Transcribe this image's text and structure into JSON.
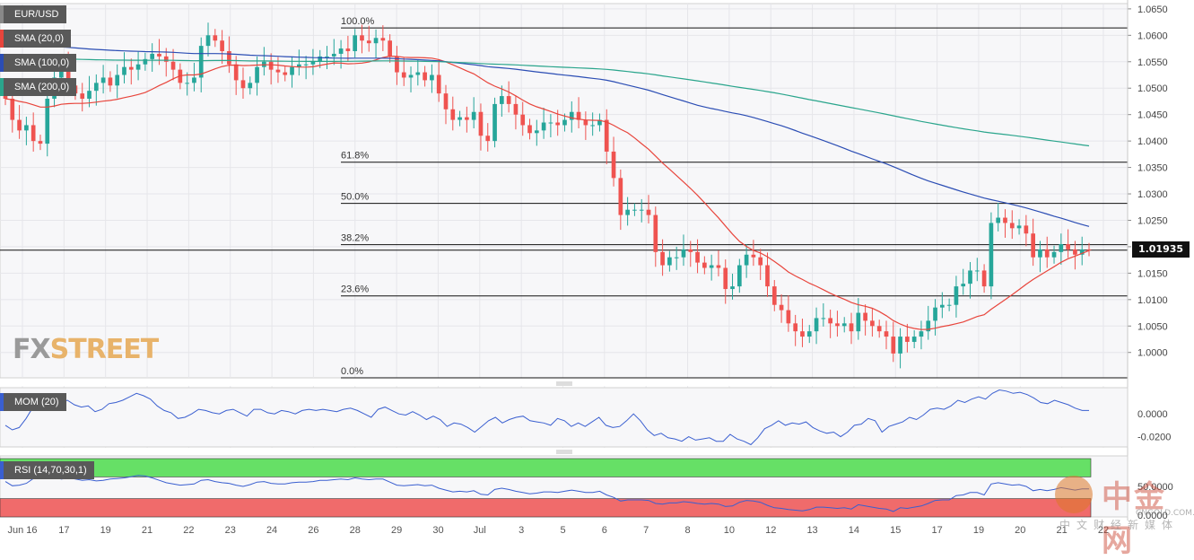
{
  "legend": {
    "symbol": "EUR/USD",
    "sma20": "SMA (20,0)",
    "sma100": "SMA (100,0)",
    "sma200": "SMA (200,0)",
    "mom": "MOM (20)",
    "rsi": "RSI (14,70,30,1)"
  },
  "colors": {
    "bull": "#26a69a",
    "bear": "#ef5350",
    "sma20": "#e8453c",
    "sma100": "#2b4db4",
    "sma200": "#2aa58c",
    "mom": "#3a5fd0",
    "rsi": "#3a5fd0",
    "overbought": "#66e066",
    "oversold": "#f06b6b"
  },
  "brand": {
    "logo_fx": "FX",
    "logo_street": "STREET",
    "wm_cn": "中金网",
    "wm_sub": "中文财经新媒体",
    "wm_url": "CNGOLD.COM.CN"
  },
  "last_price": "1.01935",
  "chart_data": {
    "type": "candlestick",
    "y_ticks": [
      "1.0650",
      "1.0600",
      "1.0550",
      "1.0500",
      "1.0450",
      "1.0400",
      "1.0350",
      "1.0300",
      "1.0250",
      "1.0200",
      "1.0150",
      "1.0100",
      "1.0050",
      "1.0000"
    ],
    "ylim": [
      0.9952,
      1.066
    ],
    "x_ticks": [
      "Jun 16",
      "17",
      "19",
      "21",
      "22",
      "23",
      "24",
      "26",
      "28",
      "29",
      "30",
      "Jul",
      "3",
      "5",
      "6",
      "7",
      "8",
      "10",
      "12",
      "13",
      "14",
      "15",
      "17",
      "19",
      "20",
      "21",
      "22"
    ],
    "fibonacci": [
      {
        "label": "100.0%",
        "value": 1.0614
      },
      {
        "label": "61.8%",
        "value": 1.036
      },
      {
        "label": "50.0%",
        "value": 1.0282
      },
      {
        "label": "38.2%",
        "value": 1.0204
      },
      {
        "label": "23.6%",
        "value": 1.0107
      },
      {
        "label": "0.0%",
        "value": 0.9952
      }
    ],
    "last_price": 1.01935,
    "close": [
      1.048,
      1.044,
      1.042,
      1.043,
      1.04,
      1.0395,
      1.048,
      1.052,
      1.0545,
      1.0505,
      1.049,
      1.048,
      1.0495,
      1.051,
      1.052,
      1.0505,
      1.0525,
      1.054,
      1.0535,
      1.0545,
      1.0555,
      1.0565,
      1.056,
      1.055,
      1.0535,
      1.051,
      1.051,
      1.052,
      1.058,
      1.06,
      1.059,
      1.057,
      1.0545,
      1.0515,
      1.05,
      1.051,
      1.054,
      1.055,
      1.0535,
      1.053,
      1.0525,
      1.054,
      1.0545,
      1.0545,
      1.055,
      1.056,
      1.056,
      1.0565,
      1.0575,
      1.057,
      1.06,
      1.059,
      1.0585,
      1.0595,
      1.059,
      1.056,
      1.053,
      1.052,
      1.0525,
      1.053,
      1.0515,
      1.0525,
      1.049,
      1.046,
      1.044,
      1.0445,
      1.044,
      1.0455,
      1.041,
      1.04,
      1.047,
      1.0485,
      1.047,
      1.045,
      1.043,
      1.0415,
      1.042,
      1.0435,
      1.0435,
      1.043,
      1.044,
      1.0455,
      1.044,
      1.043,
      1.043,
      1.044,
      1.038,
      1.033,
      1.026,
      1.027,
      1.027,
      1.027,
      1.026,
      1.019,
      1.0165,
      1.018,
      1.018,
      1.0195,
      1.019,
      1.017,
      1.016,
      1.0165,
      1.016,
      1.012,
      1.0125,
      1.0165,
      1.0185,
      1.018,
      1.0165,
      1.0125,
      1.009,
      1.008,
      1.0055,
      1.004,
      1.003,
      1.004,
      1.0065,
      1.0065,
      1.0055,
      1.005,
      1.0055,
      1.004,
      1.0075,
      1.006,
      1.005,
      1.004,
      1.003,
      0.9998,
      1.003,
      1.002,
      1.003,
      1.004,
      1.006,
      1.0085,
      1.009,
      1.009,
      1.0125,
      1.013,
      1.0155,
      1.0155,
      1.0125,
      1.0245,
      1.0255,
      1.0245,
      1.0235,
      1.024,
      1.0225,
      1.018,
      1.0195,
      1.018,
      1.019,
      1.0205,
      1.0195,
      1.0185,
      1.0195,
      1.0194
    ]
  },
  "mom": {
    "label": "MOM (20)",
    "y_ticks": [
      "0.0000",
      "-0.0200"
    ],
    "ylim": [
      -0.029,
      0.023
    ],
    "values": [
      -0.01,
      -0.014,
      -0.012,
      -0.004,
      0.006,
      0.011,
      0.016,
      0.013,
      0.01,
      0.012,
      0.008,
      0.006,
      0.007,
      0.002,
      0.004,
      0.009,
      0.01,
      0.012,
      0.015,
      0.018,
      0.016,
      0.013,
      0.007,
      0.003,
      0.001,
      -0.004,
      -0.003,
      0.0,
      0.004,
      0.003,
      0.001,
      0.0,
      0.003,
      0.004,
      0.001,
      -0.002,
      0.004,
      0.004,
      0.001,
      0.0,
      0.003,
      0.002,
      0.0,
      0.003,
      0.004,
      0.003,
      0.004,
      0.003,
      0.002,
      0.004,
      0.005,
      0.003,
      0.0,
      -0.003,
      0.004,
      0.006,
      0.003,
      0.0,
      -0.001,
      0.002,
      -0.001,
      -0.005,
      -0.002,
      -0.005,
      -0.011,
      -0.008,
      -0.009,
      -0.012,
      -0.016,
      -0.011,
      -0.006,
      -0.003,
      -0.008,
      -0.005,
      -0.003,
      -0.002,
      -0.006,
      -0.007,
      -0.008,
      -0.01,
      -0.004,
      -0.006,
      -0.011,
      -0.008,
      -0.011,
      -0.007,
      -0.003,
      -0.01,
      -0.012,
      -0.011,
      -0.006,
      0.0,
      -0.006,
      -0.014,
      -0.019,
      -0.017,
      -0.021,
      -0.022,
      -0.024,
      -0.02,
      -0.023,
      -0.022,
      -0.021,
      -0.024,
      -0.024,
      -0.018,
      -0.022,
      -0.024,
      -0.027,
      -0.021,
      -0.013,
      -0.01,
      -0.006,
      -0.01,
      -0.008,
      -0.009,
      -0.007,
      -0.012,
      -0.015,
      -0.017,
      -0.016,
      -0.02,
      -0.016,
      -0.01,
      -0.009,
      -0.004,
      -0.006,
      -0.016,
      -0.011,
      -0.009,
      -0.007,
      -0.003,
      -0.005,
      -0.001,
      0.004,
      0.005,
      0.004,
      0.007,
      0.012,
      0.01,
      0.013,
      0.015,
      0.013,
      0.018,
      0.021,
      0.02,
      0.018,
      0.019,
      0.017,
      0.014,
      0.01,
      0.009,
      0.012,
      0.01,
      0.008,
      0.005,
      0.003,
      0.003
    ]
  },
  "rsi": {
    "label": "RSI (14,70,30,1)",
    "y_ticks": [
      "50.0000",
      "0.0000"
    ],
    "levels": [
      70,
      30
    ],
    "ylim": [
      0,
      100
    ],
    "values": [
      58,
      51,
      52,
      55,
      63,
      67,
      69,
      68,
      62,
      64,
      62,
      60,
      61,
      59,
      60,
      62,
      63,
      64,
      66,
      68,
      67,
      64,
      60,
      56,
      54,
      52,
      53,
      54,
      60,
      61,
      58,
      56,
      55,
      52,
      50,
      53,
      57,
      58,
      55,
      54,
      54,
      56,
      57,
      57,
      58,
      60,
      60,
      61,
      62,
      61,
      64,
      62,
      61,
      62,
      62,
      57,
      52,
      51,
      52,
      53,
      51,
      52,
      47,
      44,
      41,
      42,
      41,
      43,
      37,
      36,
      45,
      47,
      45,
      42,
      40,
      38,
      39,
      41,
      41,
      40,
      42,
      44,
      42,
      40,
      40,
      42,
      36,
      32,
      26,
      28,
      28,
      28,
      27,
      22,
      21,
      23,
      23,
      25,
      24,
      22,
      21,
      22,
      21,
      17,
      18,
      24,
      27,
      26,
      24,
      19,
      15,
      14,
      12,
      11,
      10,
      12,
      16,
      16,
      15,
      14,
      15,
      13,
      20,
      18,
      16,
      14,
      13,
      9,
      15,
      14,
      16,
      18,
      22,
      27,
      28,
      28,
      35,
      36,
      40,
      40,
      36,
      54,
      56,
      54,
      52,
      53,
      50,
      43,
      45,
      43,
      45,
      48,
      46,
      44,
      46,
      46
    ]
  }
}
